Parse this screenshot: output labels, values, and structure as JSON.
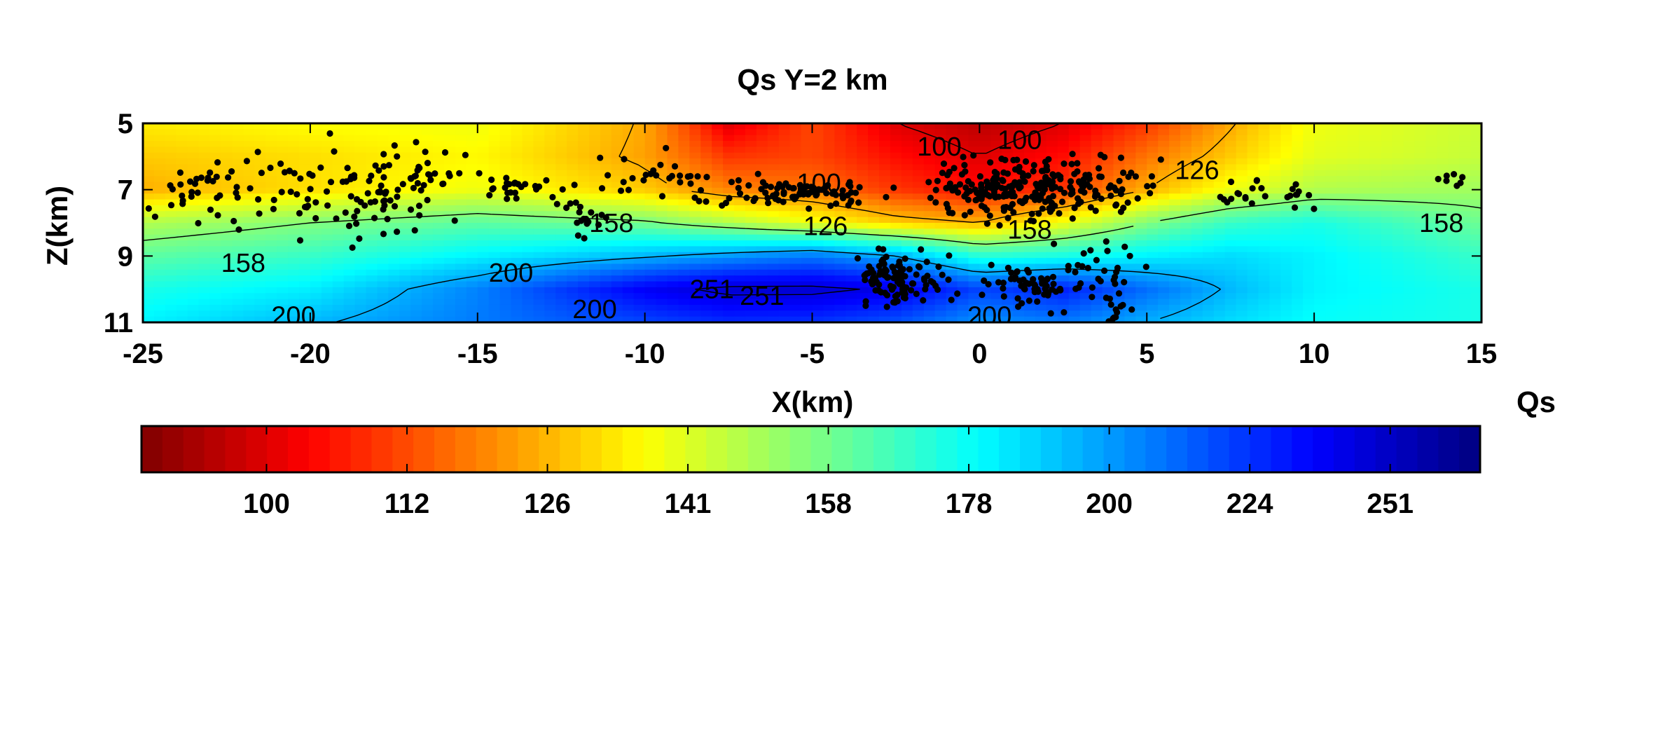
{
  "chart_data": {
    "type": "heatmap",
    "title": "Qs Y=2 km",
    "xlabel": "X(km)",
    "ylabel": "Z(km)",
    "xlim": [
      -25,
      15
    ],
    "ylim": [
      5,
      11
    ],
    "y_reversed": true,
    "x_ticks": [
      "-25",
      "-20",
      "-15",
      "-10",
      "-5",
      "0",
      "5",
      "10",
      "15"
    ],
    "x_tick_values": [
      -25,
      -20,
      -15,
      -10,
      -5,
      0,
      5,
      10,
      15
    ],
    "y_ticks": [
      "5",
      "7",
      "9",
      "11"
    ],
    "y_tick_values": [
      5,
      7,
      9,
      11
    ],
    "colormap": "jet (reversed: low = dark red, high = dark blue)",
    "field_x": [
      -25,
      -20,
      -15,
      -10,
      -7.5,
      -5,
      -2.5,
      0,
      2.5,
      5,
      7.5,
      10,
      15
    ],
    "field_z": [
      5,
      6,
      7,
      8,
      9,
      10,
      11
    ],
    "field_values": [
      [
        135,
        138,
        140,
        125,
        100,
        112,
        100,
        96,
        100,
        110,
        125,
        140,
        146
      ],
      [
        130,
        133,
        137,
        124,
        110,
        112,
        105,
        100,
        105,
        118,
        130,
        142,
        147
      ],
      [
        126,
        133,
        140,
        130,
        120,
        118,
        110,
        105,
        110,
        126,
        140,
        150,
        153
      ],
      [
        150,
        158,
        165,
        160,
        150,
        140,
        130,
        126,
        140,
        158,
        172,
        178,
        162
      ],
      [
        165,
        172,
        185,
        198,
        205,
        212,
        200,
        175,
        178,
        185,
        190,
        185,
        172
      ],
      [
        178,
        186,
        210,
        245,
        255,
        255,
        248,
        225,
        235,
        215,
        198,
        185,
        178
      ],
      [
        185,
        198,
        212,
        225,
        232,
        230,
        222,
        206,
        212,
        200,
        190,
        182,
        178
      ]
    ],
    "contour_levels": [
      100,
      126,
      158,
      200,
      251
    ],
    "contour_labels": [
      {
        "text": "158",
        "x": -22,
        "z": 9.2
      },
      {
        "text": "200",
        "x": -20.5,
        "z": 10.8
      },
      {
        "text": "158",
        "x": -11,
        "z": 8.0
      },
      {
        "text": "200",
        "x": -14,
        "z": 9.5
      },
      {
        "text": "251",
        "x": -8,
        "z": 10.0
      },
      {
        "text": "251",
        "x": -6.5,
        "z": 10.2
      },
      {
        "text": "200",
        "x": -11.5,
        "z": 10.6
      },
      {
        "text": "100",
        "x": -4.8,
        "z": 6.8
      },
      {
        "text": "126",
        "x": -4.6,
        "z": 8.1
      },
      {
        "text": "100",
        "x": -1.2,
        "z": 5.7
      },
      {
        "text": "100",
        "x": 1.2,
        "z": 5.5
      },
      {
        "text": "158",
        "x": 1.5,
        "z": 8.2
      },
      {
        "text": "200",
        "x": 0.3,
        "z": 10.8
      },
      {
        "text": "126",
        "x": 6.5,
        "z": 6.4
      },
      {
        "text": "158",
        "x": 13.8,
        "z": 8.0
      }
    ],
    "events": {
      "clusters": [
        {
          "x": -23,
          "z": 7.0,
          "sx": 1.4,
          "sz": 0.8,
          "n": 45
        },
        {
          "x": -18.5,
          "z": 7.2,
          "sx": 1.8,
          "sz": 0.9,
          "n": 90
        },
        {
          "x": -16.5,
          "z": 6.6,
          "sx": 0.8,
          "sz": 0.6,
          "n": 20
        },
        {
          "x": -13.8,
          "z": 6.9,
          "sx": 0.9,
          "sz": 0.3,
          "n": 25
        },
        {
          "x": -11.8,
          "z": 7.6,
          "sx": 0.6,
          "sz": 0.5,
          "n": 20
        },
        {
          "x": -9.5,
          "z": 6.6,
          "sx": 1.2,
          "sz": 0.5,
          "n": 25
        },
        {
          "x": -5.5,
          "z": 7.1,
          "sx": 1.9,
          "sz": 0.3,
          "n": 90
        },
        {
          "x": -2.4,
          "z": 9.7,
          "sx": 0.9,
          "sz": 0.55,
          "n": 110
        },
        {
          "x": 0.7,
          "z": 7.0,
          "sx": 1.5,
          "sz": 0.7,
          "n": 150
        },
        {
          "x": 3.0,
          "z": 6.9,
          "sx": 1.4,
          "sz": 0.6,
          "n": 100
        },
        {
          "x": 1.5,
          "z": 9.9,
          "sx": 0.9,
          "sz": 0.4,
          "n": 60
        },
        {
          "x": 3.5,
          "z": 9.4,
          "sx": 1.0,
          "sz": 0.6,
          "n": 30
        },
        {
          "x": 4.2,
          "z": 10.6,
          "sx": 0.5,
          "sz": 0.3,
          "n": 12
        },
        {
          "x": 7.8,
          "z": 7.2,
          "sx": 0.6,
          "sz": 0.3,
          "n": 15
        },
        {
          "x": 9.6,
          "z": 7.2,
          "sx": 0.3,
          "sz": 0.3,
          "n": 10
        },
        {
          "x": 14.5,
          "z": 6.6,
          "sx": 0.5,
          "sz": 0.3,
          "n": 10
        }
      ]
    },
    "colorbar": {
      "label": "Qs",
      "ticks": [
        "100",
        "112",
        "126",
        "141",
        "158",
        "178",
        "200",
        "224",
        "251"
      ]
    }
  }
}
